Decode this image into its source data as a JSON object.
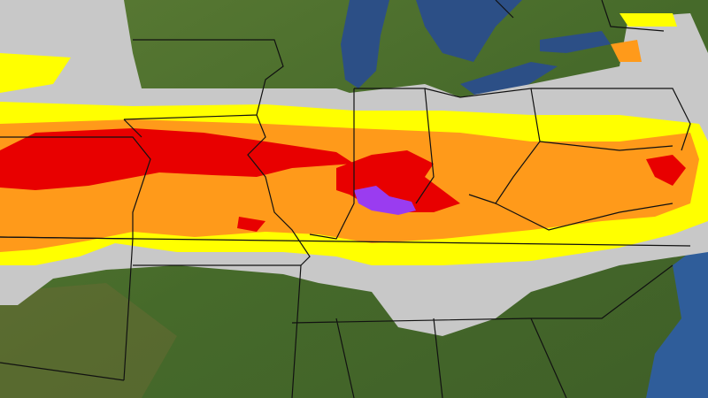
{
  "map": {
    "colors": {
      "terrain": "#4f6f2e",
      "terrain_dark": "#3d5a24",
      "water": "#2c4f86",
      "ocean": "#2f5d9a",
      "snow_gray": "#c8c8c8",
      "yellow": "#ffff00",
      "orange": "#ff9a1a",
      "red": "#e80000",
      "purple": "#9a3cf0",
      "borders": "#111111"
    },
    "legend_levels": [
      "gray",
      "yellow",
      "orange",
      "red",
      "purple"
    ]
  }
}
